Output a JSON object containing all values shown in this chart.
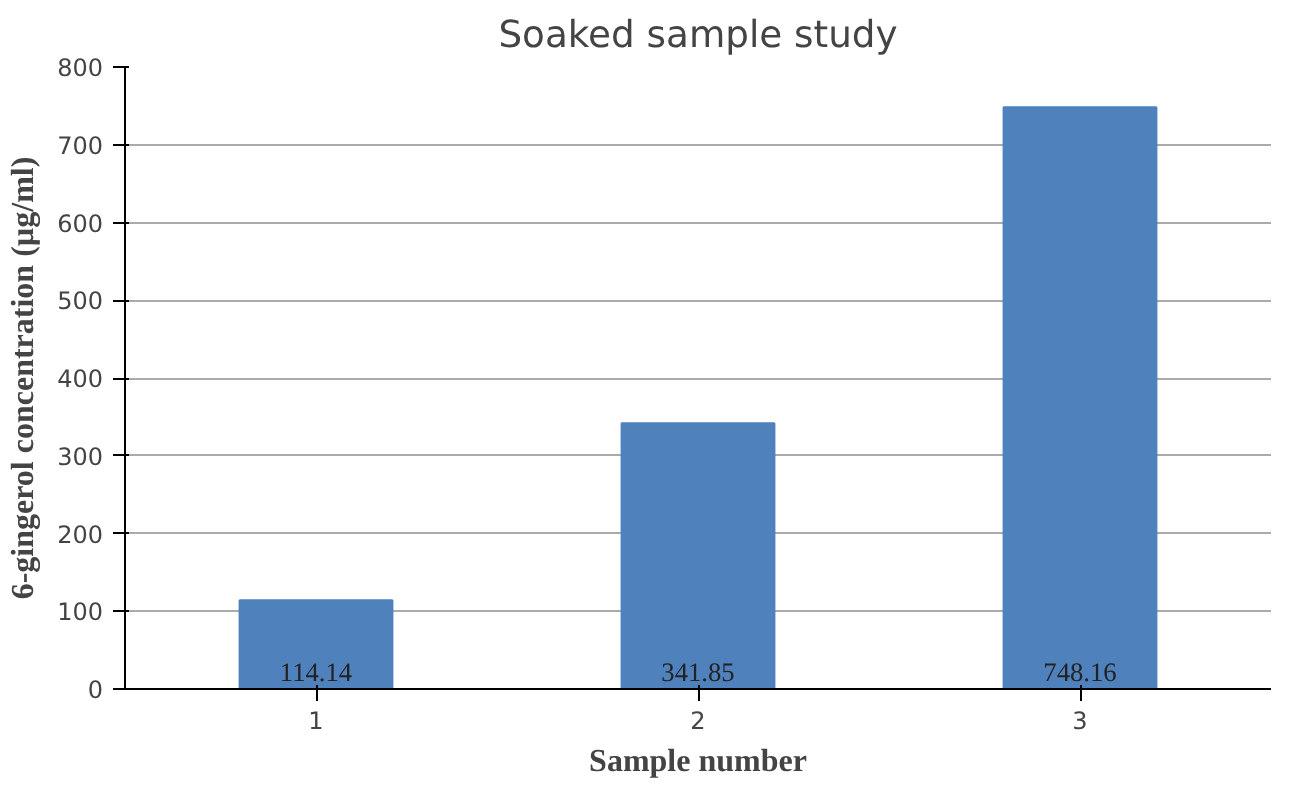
{
  "chart_data": {
    "type": "bar",
    "title": "Soaked sample study",
    "xlabel": "Sample number",
    "ylabel": "6-gingerol concentration (µg/ml)",
    "categories": [
      "1",
      "2",
      "3"
    ],
    "values": [
      114.14,
      341.85,
      748.16
    ],
    "color": "#4f81bd",
    "ylim": [
      0,
      800
    ],
    "yticks": [
      0,
      100,
      200,
      300,
      400,
      500,
      600,
      700,
      800
    ],
    "grid": "y",
    "data_labels": true
  }
}
